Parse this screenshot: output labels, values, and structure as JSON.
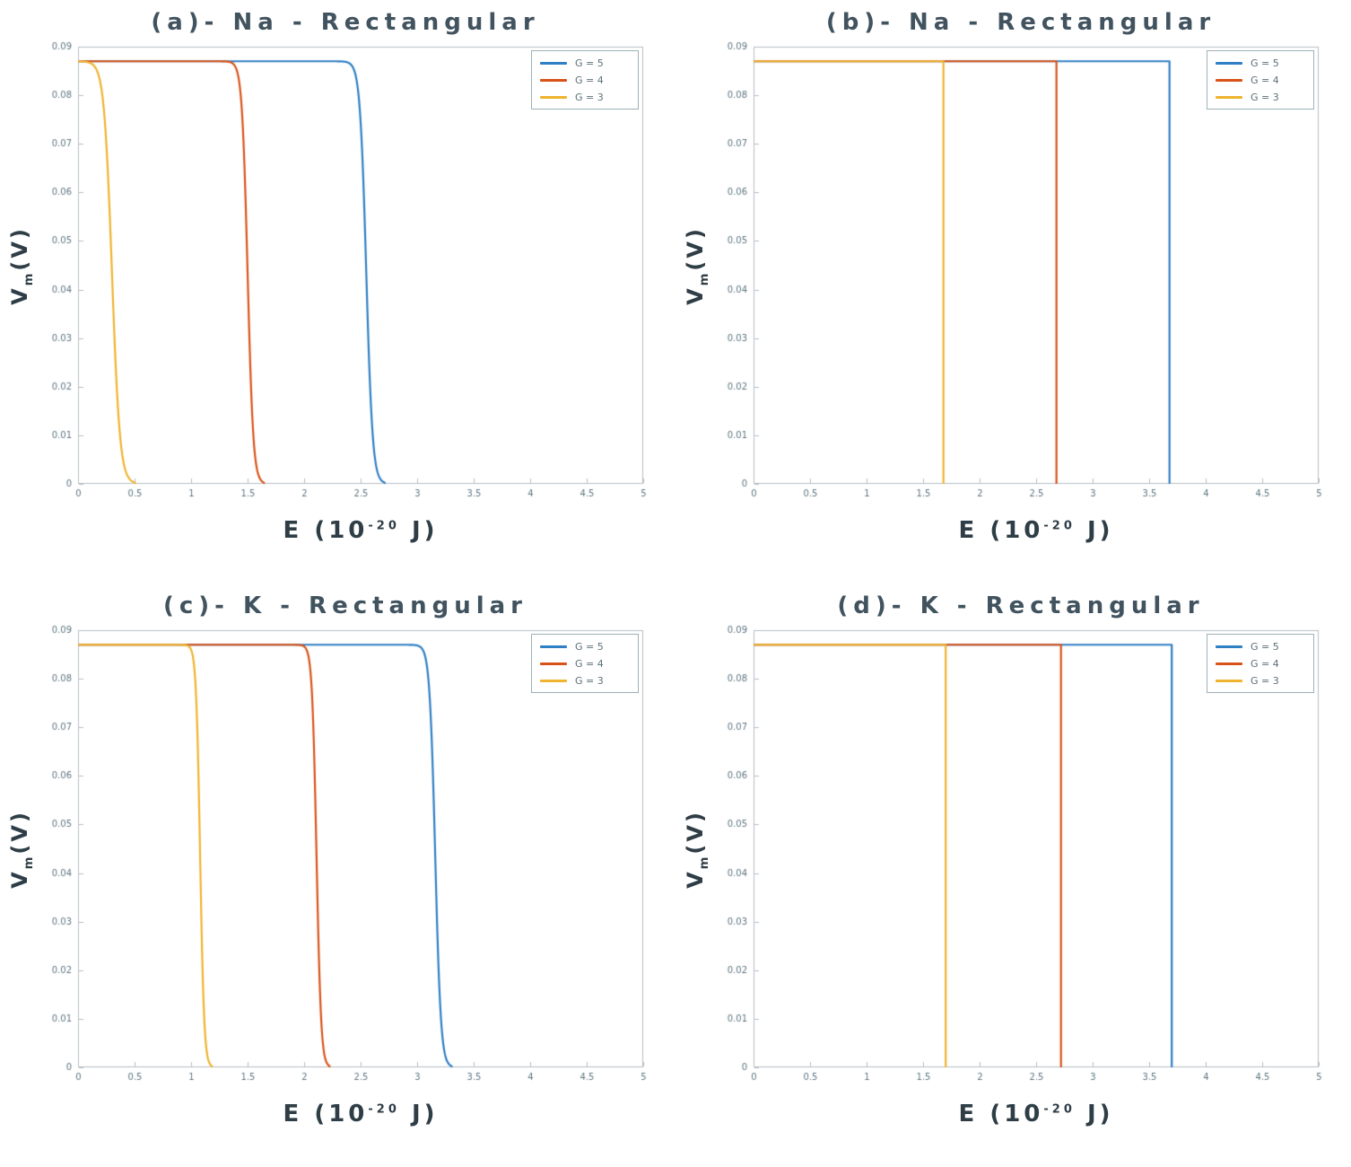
{
  "figure": {
    "background": "#ffffff"
  },
  "styles": {
    "axis_color": "#b6bec5",
    "tick_text_color": "#5e7682",
    "title_color": "#41535f",
    "label_color": "#2e3d46",
    "legend_border": "#9db0b8"
  },
  "axis": {
    "xlabel": {
      "prefix": "E (10",
      "sup": "-20",
      "suffix": " J)"
    },
    "ylabel": {
      "prefix": "V",
      "sub": "m",
      "suffix": "(V)"
    },
    "xlim": [
      0,
      5
    ],
    "ylim": [
      0,
      0.09
    ],
    "xtick_values": [
      0,
      0.5,
      1,
      1.5,
      2,
      2.5,
      3,
      3.5,
      4,
      4.5,
      5
    ],
    "xtick_labels": [
      "0",
      "0.5",
      "1",
      "1.5",
      "2",
      "2.5",
      "3",
      "3.5",
      "4",
      "4.5",
      "5"
    ],
    "ytick_values": [
      0,
      0.01,
      0.02,
      0.03,
      0.04,
      0.05,
      0.06,
      0.07,
      0.08,
      0.09
    ],
    "ytick_labels": [
      "0",
      "0.01",
      "0.02",
      "0.03",
      "0.04",
      "0.05",
      "0.06",
      "0.07",
      "0.08",
      "0.09"
    ]
  },
  "legend": {
    "items": [
      {
        "label": "G = 5",
        "color": "#2f7fc4"
      },
      {
        "label": "G = 4",
        "color": "#d95319"
      },
      {
        "label": "G = 3",
        "color": "#efb32f"
      }
    ]
  },
  "chart_data": [
    {
      "key": "a",
      "type": "line",
      "title": "(a)- Na - Rectangular",
      "xlabel": "E (10^-20 J)",
      "ylabel": "Vm(V)",
      "xlim": [
        0,
        5
      ],
      "ylim": [
        0,
        0.09
      ],
      "plateau_voltage": 0.087,
      "drop_shape": "smooth",
      "series": [
        {
          "name": "G = 5",
          "color": "#2f7fc4",
          "drop_center": 2.55,
          "drop_width": 0.028,
          "zero_at": 2.7
        },
        {
          "name": "G = 4",
          "color": "#d95319",
          "drop_center": 1.5,
          "drop_width": 0.025,
          "zero_at": 1.6
        },
        {
          "name": "G = 3",
          "color": "#efb32f",
          "drop_center": 0.3,
          "drop_width": 0.035,
          "zero_at": 0.48
        }
      ]
    },
    {
      "key": "b",
      "type": "line",
      "title": "(b)- Na - Rectangular",
      "xlabel": "E (10^-20 J)",
      "ylabel": "Vm(V)",
      "xlim": [
        0,
        5
      ],
      "ylim": [
        0,
        0.09
      ],
      "plateau_voltage": 0.087,
      "drop_shape": "step",
      "series": [
        {
          "name": "G = 5",
          "color": "#2f7fc4",
          "drop_center": 3.68,
          "drop_width": 0,
          "zero_at": 3.68
        },
        {
          "name": "G = 4",
          "color": "#d95319",
          "drop_center": 2.68,
          "drop_width": 0,
          "zero_at": 2.68
        },
        {
          "name": "G = 3",
          "color": "#efb32f",
          "drop_center": 1.68,
          "drop_width": 0,
          "zero_at": 1.68
        }
      ]
    },
    {
      "key": "c",
      "type": "line",
      "title": "(c)- K - Rectangular",
      "xlabel": "E (10^-20 J)",
      "ylabel": "Vm(V)",
      "xlim": [
        0,
        5
      ],
      "ylim": [
        0,
        0.09
      ],
      "plateau_voltage": 0.087,
      "drop_shape": "smooth",
      "series": [
        {
          "name": "G = 5",
          "color": "#2f7fc4",
          "drop_center": 3.16,
          "drop_width": 0.025,
          "zero_at": 3.25
        },
        {
          "name": "G = 4",
          "color": "#d95319",
          "drop_center": 2.11,
          "drop_width": 0.02,
          "zero_at": 2.2
        },
        {
          "name": "G = 3",
          "color": "#efb32f",
          "drop_center": 1.08,
          "drop_width": 0.018,
          "zero_at": 1.13
        }
      ]
    },
    {
      "key": "d",
      "type": "line",
      "title": "(d)- K - Rectangular",
      "xlabel": "E (10^-20 J)",
      "ylabel": "Vm(V)",
      "xlim": [
        0,
        5
      ],
      "ylim": [
        0,
        0.09
      ],
      "plateau_voltage": 0.087,
      "drop_shape": "step",
      "series": [
        {
          "name": "G = 5",
          "color": "#2f7fc4",
          "drop_center": 3.7,
          "drop_width": 0,
          "zero_at": 3.7
        },
        {
          "name": "G = 4",
          "color": "#d95319",
          "drop_center": 2.72,
          "drop_width": 0,
          "zero_at": 2.72
        },
        {
          "name": "G = 3",
          "color": "#efb32f",
          "drop_center": 1.7,
          "drop_width": 0,
          "zero_at": 1.7
        }
      ]
    }
  ]
}
